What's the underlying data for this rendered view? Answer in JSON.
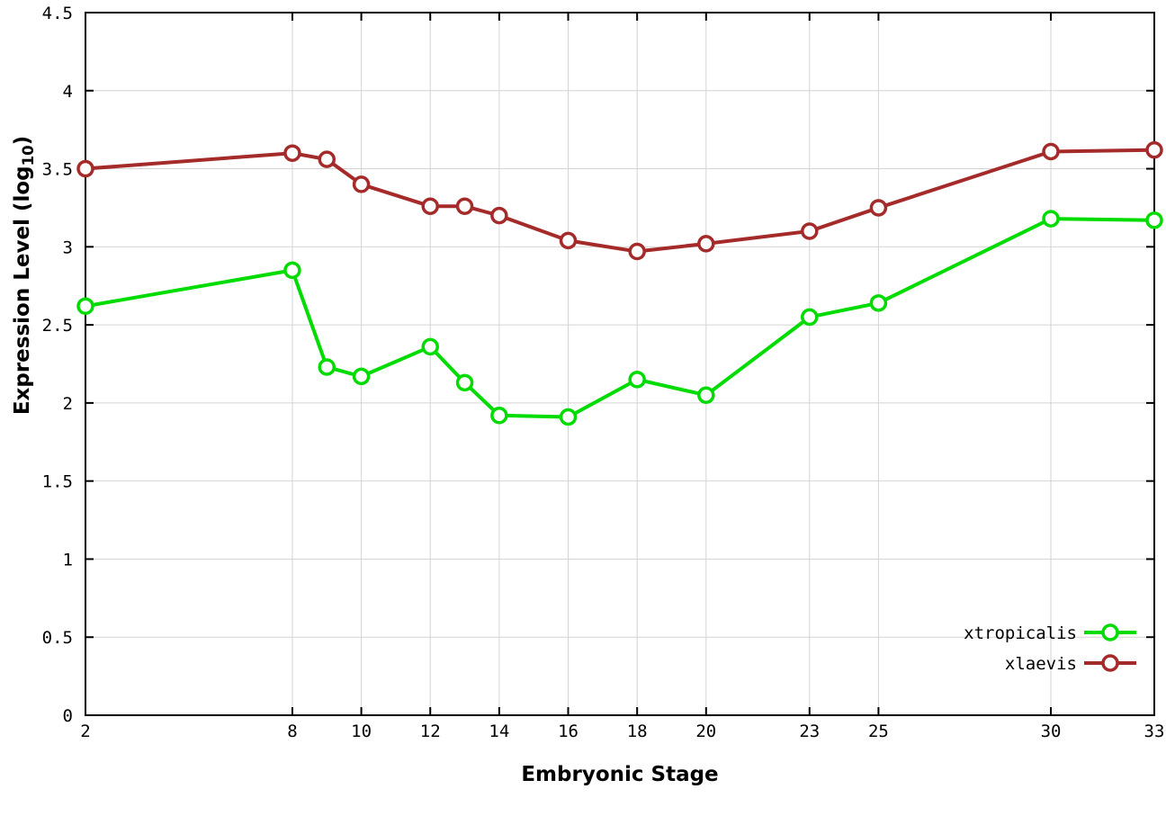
{
  "chart_data": {
    "type": "line",
    "title": "",
    "xlabel": "Embryonic Stage",
    "ylabel": "Expression Level (log10)",
    "ylabel_parts": {
      "prefix": "Expression Level (log",
      "sub": "10",
      "suffix": ")"
    },
    "xlim": [
      2,
      33
    ],
    "ylim": [
      0,
      4.5
    ],
    "xticks": [
      2,
      8,
      10,
      12,
      14,
      16,
      18,
      20,
      23,
      25,
      30,
      33
    ],
    "yticks": [
      0,
      0.5,
      1,
      1.5,
      2,
      2.5,
      3,
      3.5,
      4,
      4.5
    ],
    "grid": true,
    "border": true,
    "marker": "open-circle",
    "legend_position": "inside-bottom-right",
    "x": [
      2,
      8,
      9,
      10,
      12,
      13,
      14,
      16,
      18,
      20,
      23,
      25,
      30,
      33
    ],
    "series": [
      {
        "name": "xtropicalis",
        "color": "#00dc00",
        "values": [
          2.62,
          2.85,
          2.23,
          2.17,
          2.36,
          2.13,
          1.92,
          1.91,
          2.15,
          2.05,
          2.55,
          2.64,
          3.18,
          3.17
        ]
      },
      {
        "name": "xlaevis",
        "color": "#a52a2a",
        "values": [
          3.5,
          3.6,
          3.56,
          3.4,
          3.26,
          3.26,
          3.2,
          3.04,
          2.97,
          3.02,
          3.1,
          3.25,
          3.61,
          3.62
        ]
      }
    ]
  },
  "colors": {
    "background": "#ffffff",
    "grid": "#d4d4d4",
    "border": "#000000",
    "tick_text": "#000000",
    "marker_fill": "#ffffff"
  }
}
